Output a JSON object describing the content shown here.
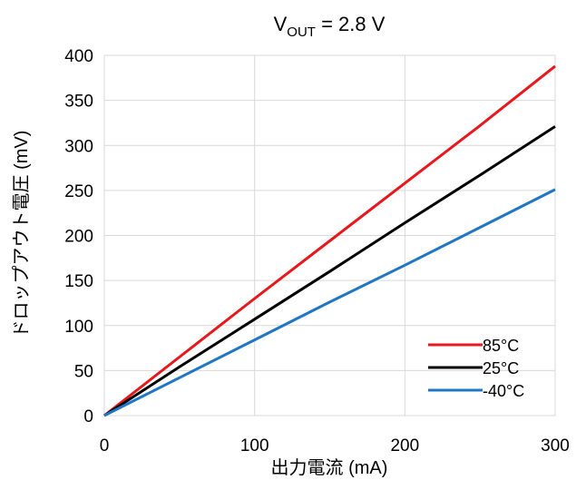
{
  "chart_data": {
    "type": "line",
    "title": {
      "prefix": "V",
      "subscript": "OUT",
      "suffix": " = 2.8 V"
    },
    "xlabel": "出力電流 (mA)",
    "ylabel": "ドロップアウト電圧 (mV)",
    "xlim": [
      0,
      300
    ],
    "ylim": [
      0,
      400
    ],
    "x_ticks": [
      0,
      100,
      200,
      300
    ],
    "y_ticks": [
      0,
      50,
      100,
      150,
      200,
      250,
      300,
      350,
      400
    ],
    "x_tick_labels": [
      "0",
      "100",
      "200",
      "300"
    ],
    "y_tick_labels": [
      "0",
      "50",
      "100",
      "150",
      "200",
      "250",
      "300",
      "350",
      "400"
    ],
    "grid": true,
    "legend_position": "bottom-right",
    "series": [
      {
        "name": "85°C",
        "color": "#e8171c",
        "x": [
          0,
          50,
          100,
          150,
          200,
          250,
          300
        ],
        "y": [
          0,
          65,
          130,
          194,
          258,
          322,
          388
        ]
      },
      {
        "name": "25°C",
        "color": "#000000",
        "x": [
          0,
          50,
          100,
          150,
          200,
          250,
          300
        ],
        "y": [
          0,
          54,
          107,
          160,
          214,
          267,
          321
        ]
      },
      {
        "name": "-40°C",
        "color": "#1f77c4",
        "x": [
          0,
          50,
          100,
          150,
          200,
          250,
          300
        ],
        "y": [
          0,
          42,
          84,
          126,
          167,
          209,
          251
        ]
      }
    ]
  }
}
